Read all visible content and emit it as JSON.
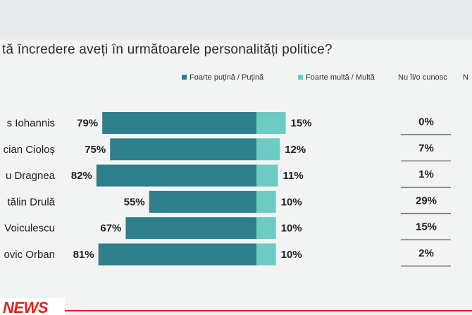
{
  "title": "tă încredere aveți în următoarele personalități politice?",
  "legend": [
    {
      "label": "Foarte puțină / Puțină",
      "color": "#2e7f8c"
    },
    {
      "label": "Foarte multă / Multă",
      "color": "#6dcbc3"
    },
    {
      "label": "Nu îl/o cunosc",
      "color": ""
    },
    {
      "label": "N",
      "color": ""
    }
  ],
  "colors": {
    "low": "#2e7f8c",
    "high": "#6dcbc3",
    "text": "#222222"
  },
  "chart_data": {
    "type": "bar",
    "stacked": true,
    "orientation": "horizontal",
    "categories": [
      "s Iohannis",
      "cian Cioloș",
      "u Dragnea",
      "tălin Drulă",
      "Voiculescu",
      "ovic Orban"
    ],
    "series": [
      {
        "name": "Foarte puțină / Puțină",
        "values": [
          79,
          75,
          82,
          55,
          67,
          81
        ]
      },
      {
        "name": "Foarte multă / Multă",
        "values": [
          15,
          12,
          11,
          10,
          10,
          10
        ]
      },
      {
        "name": "Nu îl/o cunosc",
        "values": [
          0,
          7,
          1,
          29,
          15,
          2
        ]
      }
    ],
    "value_suffix": "%",
    "legend_position": "top-right",
    "grid": false
  },
  "footer": {
    "logo_text": "NEWS"
  }
}
